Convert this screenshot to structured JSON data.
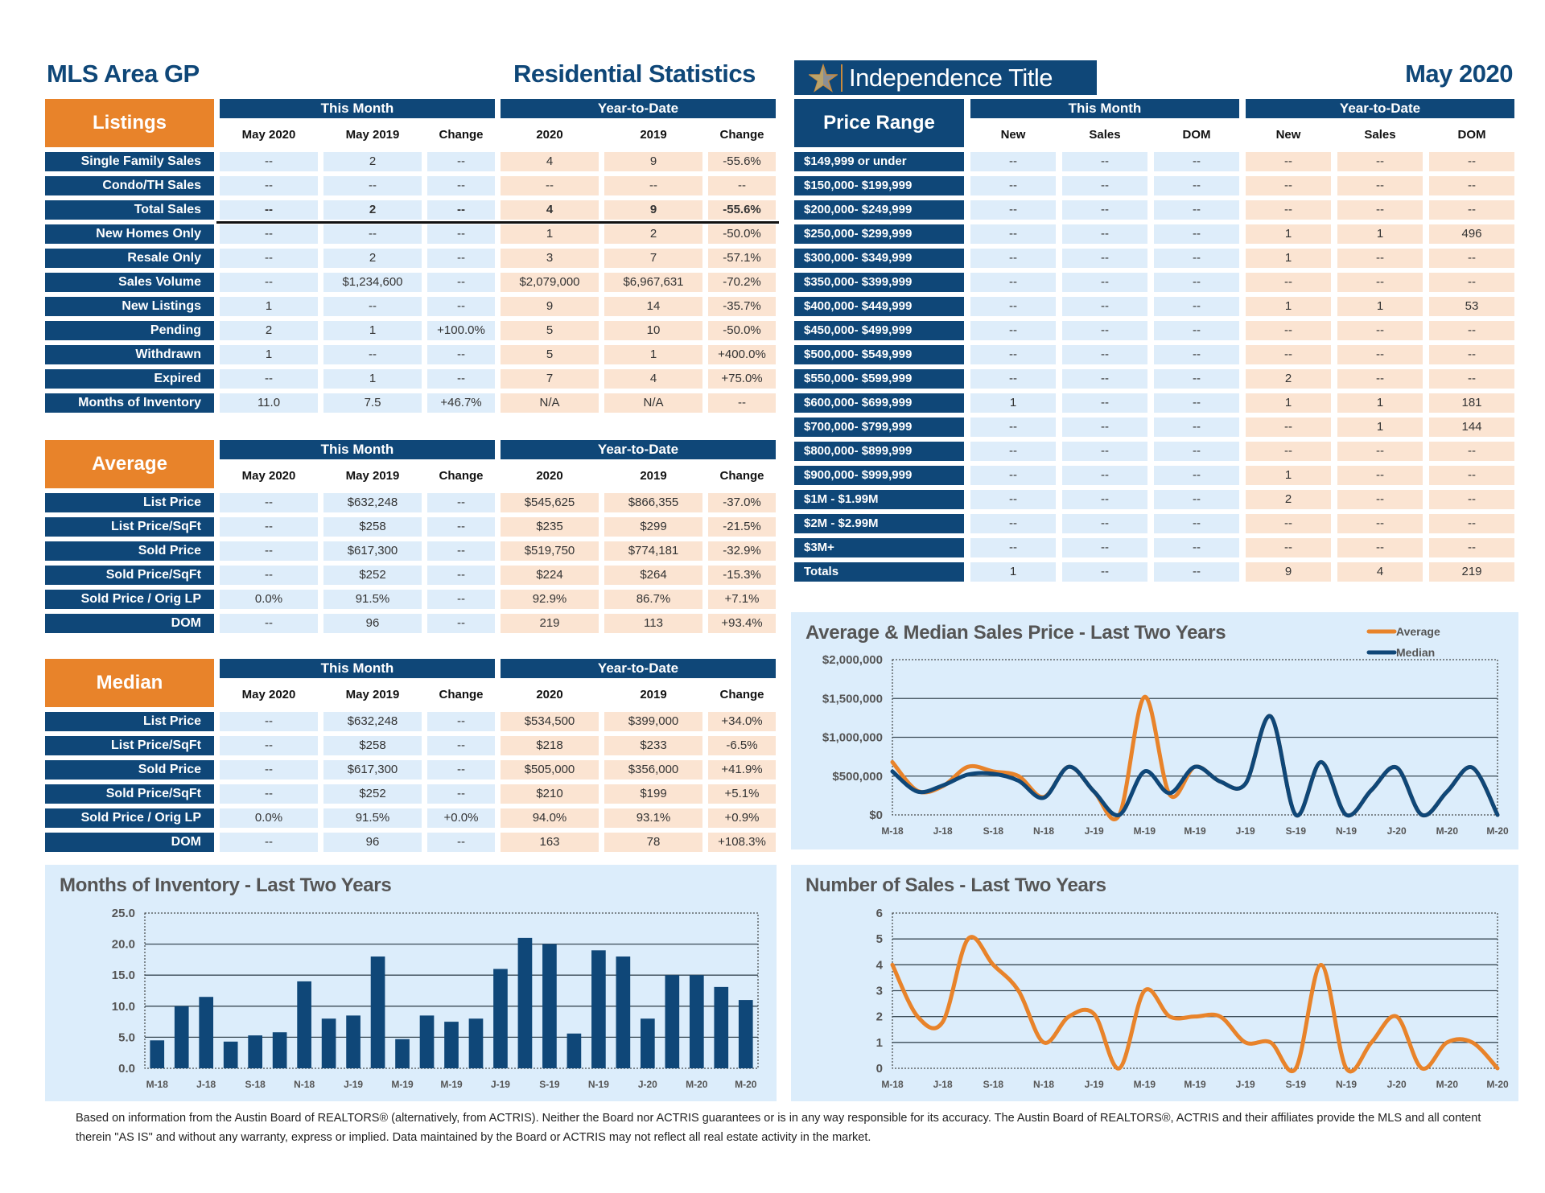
{
  "header": {
    "area": "MLS Area GP",
    "subtitle": "Residential Statistics",
    "brand": "Independence Title",
    "period": "May 2020"
  },
  "colors": {
    "navy": "#0f4778",
    "orange": "#e8832a",
    "this_month_cell": "#deedfa",
    "ytd_cell": "#fbe4d2",
    "panel": "#dcedfb"
  },
  "listings": {
    "title": "Listings",
    "groups": [
      "This Month",
      "Year-to-Date"
    ],
    "columns": [
      "May 2020",
      "May 2019",
      "Change",
      "2020",
      "2019",
      "Change"
    ],
    "rows": [
      {
        "label": "Single Family Sales",
        "values": [
          "--",
          "2",
          "--",
          "4",
          "9",
          "-55.6%"
        ]
      },
      {
        "label": "Condo/TH Sales",
        "values": [
          "--",
          "--",
          "--",
          "--",
          "--",
          "--"
        ]
      },
      {
        "label": "Total Sales",
        "values": [
          "--",
          "2",
          "--",
          "4",
          "9",
          "-55.6%"
        ],
        "bold": true
      },
      {
        "label": "New Homes Only",
        "values": [
          "--",
          "--",
          "--",
          "1",
          "2",
          "-50.0%"
        ]
      },
      {
        "label": "Resale Only",
        "values": [
          "--",
          "2",
          "--",
          "3",
          "7",
          "-57.1%"
        ]
      },
      {
        "label": "Sales Volume",
        "values": [
          "--",
          "$1,234,600",
          "--",
          "$2,079,000",
          "$6,967,631",
          "-70.2%"
        ]
      },
      {
        "label": "New Listings",
        "values": [
          "1",
          "--",
          "--",
          "9",
          "14",
          "-35.7%"
        ]
      },
      {
        "label": "Pending",
        "values": [
          "2",
          "1",
          "+100.0%",
          "5",
          "10",
          "-50.0%"
        ]
      },
      {
        "label": "Withdrawn",
        "values": [
          "1",
          "--",
          "--",
          "5",
          "1",
          "+400.0%"
        ]
      },
      {
        "label": "Expired",
        "values": [
          "--",
          "1",
          "--",
          "7",
          "4",
          "+75.0%"
        ]
      },
      {
        "label": "Months of Inventory",
        "values": [
          "11.0",
          "7.5",
          "+46.7%",
          "N/A",
          "N/A",
          "--"
        ]
      }
    ]
  },
  "average": {
    "title": "Average",
    "groups": [
      "This Month",
      "Year-to-Date"
    ],
    "columns": [
      "May 2020",
      "May 2019",
      "Change",
      "2020",
      "2019",
      "Change"
    ],
    "rows": [
      {
        "label": "List Price",
        "values": [
          "--",
          "$632,248",
          "--",
          "$545,625",
          "$866,355",
          "-37.0%"
        ]
      },
      {
        "label": "List Price/SqFt",
        "values": [
          "--",
          "$258",
          "--",
          "$235",
          "$299",
          "-21.5%"
        ]
      },
      {
        "label": "Sold Price",
        "values": [
          "--",
          "$617,300",
          "--",
          "$519,750",
          "$774,181",
          "-32.9%"
        ]
      },
      {
        "label": "Sold Price/SqFt",
        "values": [
          "--",
          "$252",
          "--",
          "$224",
          "$264",
          "-15.3%"
        ]
      },
      {
        "label": "Sold Price / Orig LP",
        "values": [
          "0.0%",
          "91.5%",
          "--",
          "92.9%",
          "86.7%",
          "+7.1%"
        ]
      },
      {
        "label": "DOM",
        "values": [
          "--",
          "96",
          "--",
          "219",
          "113",
          "+93.4%"
        ]
      }
    ]
  },
  "median": {
    "title": "Median",
    "groups": [
      "This Month",
      "Year-to-Date"
    ],
    "columns": [
      "May 2020",
      "May 2019",
      "Change",
      "2020",
      "2019",
      "Change"
    ],
    "rows": [
      {
        "label": "List Price",
        "values": [
          "--",
          "$632,248",
          "--",
          "$534,500",
          "$399,000",
          "+34.0%"
        ]
      },
      {
        "label": "List Price/SqFt",
        "values": [
          "--",
          "$258",
          "--",
          "$218",
          "$233",
          "-6.5%"
        ]
      },
      {
        "label": "Sold Price",
        "values": [
          "--",
          "$617,300",
          "--",
          "$505,000",
          "$356,000",
          "+41.9%"
        ]
      },
      {
        "label": "Sold Price/SqFt",
        "values": [
          "--",
          "$252",
          "--",
          "$210",
          "$199",
          "+5.1%"
        ]
      },
      {
        "label": "Sold Price / Orig LP",
        "values": [
          "0.0%",
          "91.5%",
          "+0.0%",
          "94.0%",
          "93.1%",
          "+0.9%"
        ]
      },
      {
        "label": "DOM",
        "values": [
          "--",
          "96",
          "--",
          "163",
          "78",
          "+108.3%"
        ]
      }
    ]
  },
  "price_range": {
    "title": "Price Range",
    "groups": [
      "This Month",
      "Year-to-Date"
    ],
    "columns": [
      "New",
      "Sales",
      "DOM",
      "New",
      "Sales",
      "DOM"
    ],
    "rows": [
      {
        "label": "$149,999 or under",
        "values": [
          "--",
          "--",
          "--",
          "--",
          "--",
          "--"
        ]
      },
      {
        "label": "$150,000- $199,999",
        "values": [
          "--",
          "--",
          "--",
          "--",
          "--",
          "--"
        ]
      },
      {
        "label": "$200,000- $249,999",
        "values": [
          "--",
          "--",
          "--",
          "--",
          "--",
          "--"
        ]
      },
      {
        "label": "$250,000- $299,999",
        "values": [
          "--",
          "--",
          "--",
          "1",
          "1",
          "496"
        ]
      },
      {
        "label": "$300,000- $349,999",
        "values": [
          "--",
          "--",
          "--",
          "1",
          "--",
          "--"
        ]
      },
      {
        "label": "$350,000- $399,999",
        "values": [
          "--",
          "--",
          "--",
          "--",
          "--",
          "--"
        ]
      },
      {
        "label": "$400,000- $449,999",
        "values": [
          "--",
          "--",
          "--",
          "1",
          "1",
          "53"
        ]
      },
      {
        "label": "$450,000- $499,999",
        "values": [
          "--",
          "--",
          "--",
          "--",
          "--",
          "--"
        ]
      },
      {
        "label": "$500,000- $549,999",
        "values": [
          "--",
          "--",
          "--",
          "--",
          "--",
          "--"
        ]
      },
      {
        "label": "$550,000- $599,999",
        "values": [
          "--",
          "--",
          "--",
          "2",
          "--",
          "--"
        ]
      },
      {
        "label": "$600,000- $699,999",
        "values": [
          "1",
          "--",
          "--",
          "1",
          "1",
          "181"
        ]
      },
      {
        "label": "$700,000- $799,999",
        "values": [
          "--",
          "--",
          "--",
          "--",
          "1",
          "144"
        ]
      },
      {
        "label": "$800,000- $899,999",
        "values": [
          "--",
          "--",
          "--",
          "--",
          "--",
          "--"
        ]
      },
      {
        "label": "$900,000- $999,999",
        "values": [
          "--",
          "--",
          "--",
          "1",
          "--",
          "--"
        ]
      },
      {
        "label": "$1M - $1.99M",
        "values": [
          "--",
          "--",
          "--",
          "2",
          "--",
          "--"
        ]
      },
      {
        "label": "$2M - $2.99M",
        "values": [
          "--",
          "--",
          "--",
          "--",
          "--",
          "--"
        ]
      },
      {
        "label": "$3M+",
        "values": [
          "--",
          "--",
          "--",
          "--",
          "--",
          "--"
        ]
      },
      {
        "label": "Totals",
        "values": [
          "1",
          "--",
          "--",
          "9",
          "4",
          "219"
        ]
      }
    ]
  },
  "chart_data": [
    {
      "type": "line",
      "title": "Average & Median Sales Price - Last Two Years",
      "x_tick_labels": [
        "M-18",
        "J-18",
        "S-18",
        "N-18",
        "J-19",
        "M-19",
        "M-19",
        "J-19",
        "S-19",
        "N-19",
        "J-20",
        "M-20",
        "M-20"
      ],
      "y_tick_labels": [
        "$0",
        "$500,000",
        "$1,000,000",
        "$1,500,000",
        "$2,000,000"
      ],
      "ylim": [
        0,
        2000000
      ],
      "grid": true,
      "legend": "top-right",
      "smooth": true,
      "series": [
        {
          "name": "Average",
          "color": "#e8832a",
          "values": [
            680000,
            310000,
            370000,
            620000,
            560000,
            500000,
            230000,
            620000,
            300000,
            0,
            1520000,
            260000,
            620000,
            430000,
            400000,
            1270000,
            0,
            680000,
            0,
            320000,
            610000,
            0,
            300000,
            610000,
            0
          ]
        },
        {
          "name": "Median",
          "color": "#0f4778",
          "values": [
            560000,
            300000,
            380000,
            520000,
            530000,
            440000,
            220000,
            620000,
            300000,
            0,
            560000,
            280000,
            620000,
            430000,
            400000,
            1270000,
            0,
            680000,
            0,
            320000,
            610000,
            0,
            300000,
            610000,
            0
          ]
        }
      ]
    },
    {
      "type": "bar",
      "title": "Months of Inventory - Last Two Years",
      "x_tick_labels": [
        "M-18",
        "J-18",
        "S-18",
        "N-18",
        "J-19",
        "M-19",
        "M-19",
        "J-19",
        "S-19",
        "N-19",
        "J-20",
        "M-20",
        "M-20"
      ],
      "y_tick_labels": [
        "0.0",
        "5.0",
        "10.0",
        "15.0",
        "20.0",
        "25.0"
      ],
      "ylim": [
        0,
        25
      ],
      "grid": true,
      "color": "#0f4778",
      "values": [
        4.5,
        10,
        11.5,
        4.3,
        5.3,
        5.8,
        14,
        8,
        8.5,
        18,
        4.7,
        8.5,
        7.5,
        8,
        16,
        21,
        20,
        5.6,
        19,
        18,
        8,
        15,
        15,
        13.1,
        11
      ]
    },
    {
      "type": "line",
      "title": "Number of Sales - Last Two Years",
      "x_tick_labels": [
        "M-18",
        "J-18",
        "S-18",
        "N-18",
        "J-19",
        "M-19",
        "M-19",
        "J-19",
        "S-19",
        "N-19",
        "J-20",
        "M-20",
        "M-20"
      ],
      "y_tick_labels": [
        "0",
        "1",
        "2",
        "3",
        "4",
        "5",
        "6"
      ],
      "ylim": [
        0,
        6
      ],
      "grid": true,
      "smooth": true,
      "color": "#e8832a",
      "values": [
        4,
        2,
        1.8,
        5,
        4,
        3,
        1,
        2,
        2.1,
        0,
        3,
        2,
        2,
        2,
        1,
        1,
        0,
        4,
        0,
        1,
        2,
        0,
        1,
        1,
        0
      ]
    }
  ],
  "footer": "Based on information from the Austin Board of REALTORS® (alternatively, from ACTRIS). Neither the Board nor ACTRIS guarantees or is in any way responsible for its accuracy. The Austin Board of REALTORS®, ACTRIS and their affiliates provide the MLS and all content therein \"AS IS\" and without any warranty, express or implied. Data maintained by the Board or ACTRIS may not reflect all real estate activity in the market."
}
